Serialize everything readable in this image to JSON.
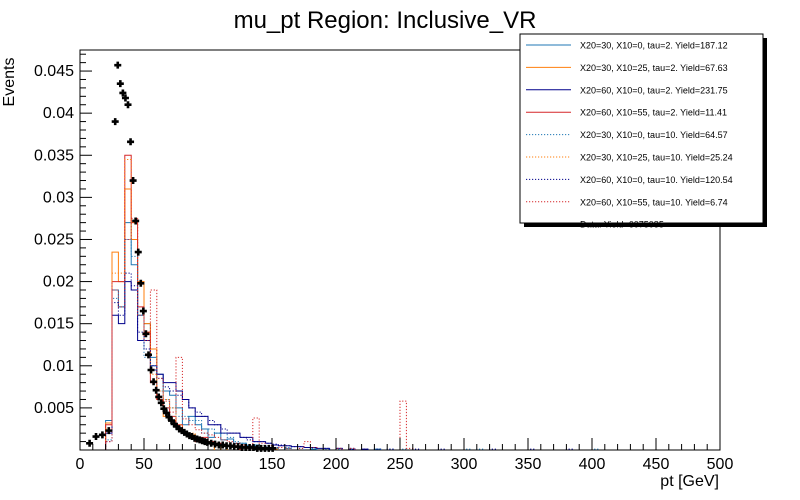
{
  "chart_data": {
    "type": "histogram",
    "title": "mu_pt Region: Inclusive_VR",
    "xlabel": "pt [GeV]",
    "ylabel": "Events",
    "xlim": [
      0,
      500
    ],
    "ylim": [
      0,
      0.0475
    ],
    "xticks": [
      "0",
      "50",
      "100",
      "150",
      "200",
      "250",
      "300",
      "350",
      "400",
      "450",
      "500"
    ],
    "yticks": [
      "0.005",
      "0.01",
      "0.015",
      "0.02",
      "0.025",
      "0.03",
      "0.035",
      "0.04",
      "0.045"
    ],
    "bin_width": 5,
    "legend_position": "top-right",
    "series": [
      {
        "name": "X20=30, X10=0, tau=2. Yield=187.12",
        "color": "#1f77b4",
        "style": "solid",
        "points": [
          [
            20,
            0.0035
          ],
          [
            25,
            0.019
          ],
          [
            30,
            0.017
          ],
          [
            35,
            0.027
          ],
          [
            40,
            0.022
          ],
          [
            45,
            0.016
          ],
          [
            50,
            0.015
          ],
          [
            55,
            0.011
          ],
          [
            60,
            0.009
          ],
          [
            65,
            0.007
          ],
          [
            70,
            0.0065
          ],
          [
            75,
            0.005
          ],
          [
            80,
            0.003
          ],
          [
            85,
            0.004
          ],
          [
            90,
            0.003
          ],
          [
            95,
            0.0025
          ],
          [
            100,
            0.0015
          ],
          [
            105,
            0.002
          ],
          [
            110,
            0.0012
          ],
          [
            115,
            0.0013
          ],
          [
            120,
            0.0008
          ],
          [
            125,
            0.0008
          ],
          [
            130,
            0.0005
          ],
          [
            135,
            0.0006
          ],
          [
            140,
            0.0003
          ],
          [
            145,
            0.0003
          ],
          [
            150,
            0.0002
          ],
          [
            160,
            0.0002
          ],
          [
            180,
            0.0001
          ],
          [
            230,
            0.0001
          ]
        ]
      },
      {
        "name": "X20=30, X10=25, tau=2. Yield=67.63",
        "color": "#ff7f0e",
        "style": "solid",
        "points": [
          [
            20,
            0.0032
          ],
          [
            25,
            0.0235
          ],
          [
            30,
            0.02
          ],
          [
            35,
            0.031
          ],
          [
            40,
            0.025
          ],
          [
            45,
            0.02
          ],
          [
            50,
            0.015
          ],
          [
            55,
            0.012
          ],
          [
            60,
            0.006
          ],
          [
            65,
            0.004
          ],
          [
            70,
            0.0035
          ],
          [
            75,
            0.0025
          ],
          [
            80,
            0.002
          ],
          [
            85,
            0.0018
          ],
          [
            90,
            0.001
          ],
          [
            95,
            0.001
          ],
          [
            100,
            0.0008
          ],
          [
            110,
            0.0005
          ],
          [
            120,
            0.0004
          ],
          [
            130,
            0.0003
          ],
          [
            140,
            0.0002
          ],
          [
            150,
            0.0001
          ]
        ]
      },
      {
        "name": "X20=60, X10=0, tau=2. Yield=231.75",
        "color": "#00008b",
        "style": "solid",
        "points": [
          [
            20,
            0.002
          ],
          [
            25,
            0.016
          ],
          [
            30,
            0.015
          ],
          [
            35,
            0.02
          ],
          [
            40,
            0.019
          ],
          [
            45,
            0.013
          ],
          [
            50,
            0.013
          ],
          [
            55,
            0.01
          ],
          [
            60,
            0.009
          ],
          [
            65,
            0.008
          ],
          [
            70,
            0.008
          ],
          [
            75,
            0.007
          ],
          [
            80,
            0.006
          ],
          [
            85,
            0.005
          ],
          [
            90,
            0.004
          ],
          [
            95,
            0.004
          ],
          [
            100,
            0.003
          ],
          [
            105,
            0.003
          ],
          [
            110,
            0.002
          ],
          [
            115,
            0.002
          ],
          [
            120,
            0.002
          ],
          [
            125,
            0.0015
          ],
          [
            130,
            0.0015
          ],
          [
            135,
            0.001
          ],
          [
            140,
            0.001
          ],
          [
            145,
            0.0008
          ],
          [
            150,
            0.0006
          ],
          [
            155,
            0.0005
          ],
          [
            160,
            0.0005
          ],
          [
            165,
            0.0004
          ],
          [
            170,
            0.0004
          ],
          [
            175,
            0.0003
          ],
          [
            180,
            0.0003
          ],
          [
            185,
            0.0002
          ],
          [
            190,
            0.0002
          ],
          [
            200,
            0.0002
          ],
          [
            210,
            0.0001
          ],
          [
            220,
            0.0001
          ]
        ]
      },
      {
        "name": "X20=60, X10=55, tau=2. Yield=11.41",
        "color": "#d62728",
        "style": "solid",
        "points": [
          [
            20,
            0.003
          ],
          [
            25,
            0.02
          ],
          [
            30,
            0.02
          ],
          [
            35,
            0.035
          ],
          [
            40,
            0.027
          ],
          [
            45,
            0.017
          ],
          [
            50,
            0.014
          ],
          [
            55,
            0.008
          ],
          [
            60,
            0.006
          ],
          [
            65,
            0.005
          ],
          [
            70,
            0.004
          ],
          [
            75,
            0.003
          ],
          [
            80,
            0.002
          ],
          [
            85,
            0.0015
          ],
          [
            90,
            0.001
          ],
          [
            95,
            0.0015
          ],
          [
            100,
            0.001
          ],
          [
            105,
            0.0008
          ],
          [
            110,
            0.0005
          ],
          [
            115,
            0.0005
          ],
          [
            120,
            0.0003
          ],
          [
            130,
            0.0002
          ]
        ]
      },
      {
        "name": "X20=30, X10=0, tau=10. Yield=64.57",
        "color": "#1f77b4",
        "style": "dotted",
        "points": [
          [
            20,
            0.0012
          ],
          [
            25,
            0.018
          ],
          [
            30,
            0.017
          ],
          [
            35,
            0.025
          ],
          [
            40,
            0.023
          ],
          [
            45,
            0.016
          ],
          [
            50,
            0.011
          ],
          [
            55,
            0.01
          ],
          [
            60,
            0.007
          ],
          [
            65,
            0.006
          ],
          [
            70,
            0.005
          ],
          [
            75,
            0.004
          ],
          [
            80,
            0.004
          ],
          [
            85,
            0.0035
          ],
          [
            90,
            0.0035
          ],
          [
            95,
            0.002
          ],
          [
            100,
            0.0025
          ],
          [
            105,
            0.002
          ],
          [
            110,
            0.002
          ],
          [
            115,
            0.0015
          ],
          [
            120,
            0.001
          ],
          [
            125,
            0.0008
          ],
          [
            130,
            0.0006
          ],
          [
            135,
            0.0005
          ],
          [
            140,
            0.0005
          ],
          [
            145,
            0.0004
          ],
          [
            150,
            0.0003
          ],
          [
            160,
            0.0003
          ],
          [
            170,
            0.0002
          ],
          [
            180,
            0.0002
          ],
          [
            190,
            0.0001
          ],
          [
            200,
            0.0001
          ],
          [
            210,
            0.0001
          ],
          [
            230,
            0.0001
          ],
          [
            240,
            0.0001
          ],
          [
            250,
            0.0001
          ],
          [
            300,
            0.0001
          ],
          [
            310,
            0.0001
          ],
          [
            400,
            0.0001
          ]
        ]
      },
      {
        "name": "X20=30, X10=25, tau=10. Yield=25.24",
        "color": "#ff7f0e",
        "style": "dotted",
        "points": [
          [
            20,
            0.0025
          ],
          [
            25,
            0.021
          ],
          [
            30,
            0.021
          ],
          [
            35,
            0.0345
          ],
          [
            40,
            0.027
          ],
          [
            45,
            0.02
          ],
          [
            50,
            0.014
          ],
          [
            55,
            0.009
          ],
          [
            60,
            0.007
          ],
          [
            65,
            0.006
          ],
          [
            70,
            0.005
          ],
          [
            75,
            0.003
          ],
          [
            80,
            0.002
          ],
          [
            85,
            0.002
          ],
          [
            90,
            0.0015
          ],
          [
            95,
            0.001
          ],
          [
            100,
            0.001
          ],
          [
            110,
            0.0005
          ],
          [
            120,
            0.0005
          ],
          [
            130,
            0.0003
          ],
          [
            140,
            0.0002
          ],
          [
            150,
            0.0001
          ]
        ]
      },
      {
        "name": "X20=60, X10=0, tau=10. Yield=120.54",
        "color": "#00008b",
        "style": "dotted",
        "points": [
          [
            20,
            0.001
          ],
          [
            25,
            0.0175
          ],
          [
            30,
            0.016
          ],
          [
            35,
            0.021
          ],
          [
            40,
            0.0195
          ],
          [
            45,
            0.014
          ],
          [
            50,
            0.012
          ],
          [
            55,
            0.0095
          ],
          [
            60,
            0.0085
          ],
          [
            65,
            0.0075
          ],
          [
            70,
            0.007
          ],
          [
            75,
            0.0065
          ],
          [
            80,
            0.006
          ],
          [
            85,
            0.005
          ],
          [
            90,
            0.0045
          ],
          [
            95,
            0.004
          ],
          [
            100,
            0.0035
          ],
          [
            105,
            0.003
          ],
          [
            110,
            0.0025
          ],
          [
            115,
            0.002
          ],
          [
            120,
            0.002
          ],
          [
            125,
            0.0015
          ],
          [
            130,
            0.0012
          ],
          [
            135,
            0.001
          ],
          [
            140,
            0.001
          ],
          [
            145,
            0.0008
          ],
          [
            150,
            0.0007
          ],
          [
            155,
            0.0006
          ],
          [
            160,
            0.0005
          ],
          [
            165,
            0.0004
          ],
          [
            170,
            0.0004
          ],
          [
            175,
            0.0003
          ],
          [
            180,
            0.0003
          ],
          [
            190,
            0.0002
          ],
          [
            200,
            0.0002
          ],
          [
            210,
            0.0002
          ],
          [
            220,
            0.0001
          ],
          [
            230,
            0.0001
          ],
          [
            240,
            0.0001
          ],
          [
            260,
            0.0001
          ],
          [
            280,
            0.0001
          ],
          [
            320,
            0.0001
          ],
          [
            350,
            0.0001
          ],
          [
            380,
            0.0001
          ]
        ]
      },
      {
        "name": "X20=60, X10=55, tau=10. Yield=6.74",
        "color": "#d62728",
        "style": "dotted",
        "points": [
          [
            20,
            0.001
          ],
          [
            25,
            0.019
          ],
          [
            30,
            0.017
          ],
          [
            35,
            0.025
          ],
          [
            40,
            0.0275
          ],
          [
            45,
            0.016
          ],
          [
            50,
            0.013
          ],
          [
            55,
            0.019
          ],
          [
            60,
            0.0085
          ],
          [
            65,
            0.0058
          ],
          [
            70,
            0.0045
          ],
          [
            75,
            0.011
          ],
          [
            80,
            0.0037
          ],
          [
            85,
            0.003
          ],
          [
            90,
            0.0024
          ],
          [
            95,
            0.002
          ],
          [
            100,
            0.0018
          ],
          [
            105,
            0.0015
          ],
          [
            110,
            0.0012
          ],
          [
            115,
            0.001
          ],
          [
            120,
            0.0008
          ],
          [
            125,
            0.0006
          ],
          [
            130,
            0.0005
          ],
          [
            135,
            0.0038
          ],
          [
            140,
            0.0008
          ],
          [
            145,
            0.0005
          ],
          [
            150,
            0.0003
          ],
          [
            155,
            0.0003
          ],
          [
            160,
            0.0002
          ],
          [
            170,
            0.0002
          ],
          [
            175,
            0.001
          ],
          [
            180,
            0.0003
          ],
          [
            200,
            0.0002
          ],
          [
            210,
            0.0002
          ],
          [
            250,
            0.0058
          ],
          [
            255,
            0.0002
          ]
        ]
      }
    ],
    "data_series": {
      "name": "Data. Yield=6075085",
      "x": [
        7.5,
        12.5,
        17.5,
        22.5,
        27.5,
        29.5,
        31.5,
        33.5,
        35.5,
        37.5,
        39.5,
        41.5,
        43.5,
        45.5,
        47.5,
        49.5,
        51.5,
        53.5,
        55.5,
        57.5,
        59.5,
        61.5,
        63.5,
        65.5,
        67.5,
        69.5,
        71.5,
        73.5,
        75.5,
        77.5,
        79.5,
        81.5,
        83.5,
        85.5,
        87.5,
        89.5,
        91.5,
        93.5,
        95.5,
        97.5,
        99.5,
        102.5,
        105.5,
        108.5,
        111.5,
        114.5,
        117.5,
        120.5,
        123.5,
        126.5,
        129.5,
        132.5,
        135.5,
        138.5,
        141.5,
        144.5,
        147.5,
        150.5
      ],
      "y": [
        0.0008,
        0.0016,
        0.0018,
        0.0023,
        0.039,
        0.0457,
        0.0435,
        0.0424,
        0.0418,
        0.041,
        0.0366,
        0.032,
        0.0272,
        0.0235,
        0.0198,
        0.0165,
        0.0138,
        0.0113,
        0.0095,
        0.0081,
        0.0071,
        0.0063,
        0.0056,
        0.0049,
        0.0044,
        0.0039,
        0.0035,
        0.0031,
        0.0028,
        0.0025,
        0.0023,
        0.0021,
        0.0019,
        0.0017,
        0.0016,
        0.0014,
        0.0013,
        0.0012,
        0.0011,
        0.001,
        0.0009,
        0.0008,
        0.0007,
        0.0006,
        0.0006,
        0.0005,
        0.0005,
        0.0004,
        0.0004,
        0.0003,
        0.0003,
        0.0003,
        0.0003,
        0.0002,
        0.0002,
        0.0002,
        0.0002,
        0.0002
      ]
    }
  }
}
